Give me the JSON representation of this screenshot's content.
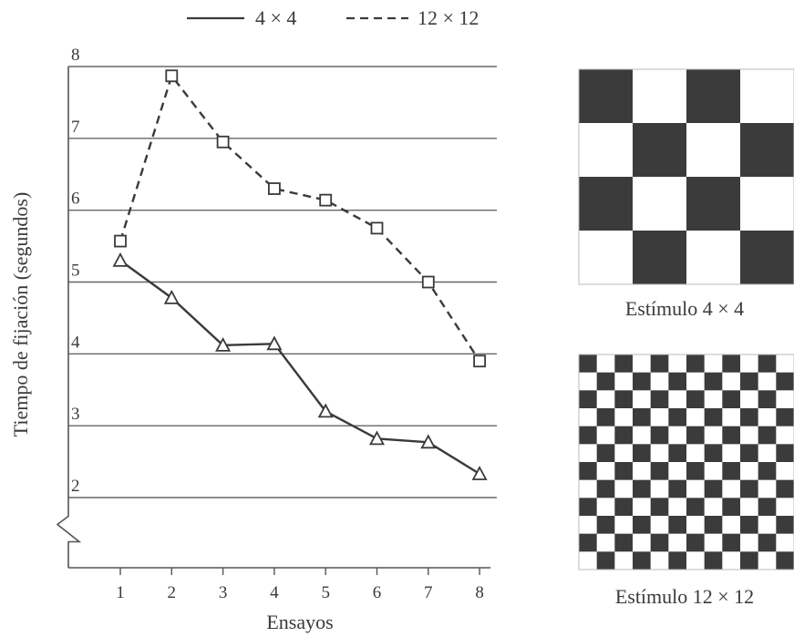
{
  "chart_data": {
    "type": "line",
    "xlabel": "Ensayos",
    "ylabel": "Tiempo de fijación (segundos)",
    "x": [
      1,
      2,
      3,
      4,
      5,
      6,
      7,
      8
    ],
    "x_ticks": [
      "1",
      "2",
      "3",
      "4",
      "5",
      "6",
      "7",
      "8"
    ],
    "y_ticks": [
      "2",
      "3",
      "4",
      "5",
      "6",
      "7",
      "8"
    ],
    "xlim": [
      0,
      8.2
    ],
    "ylim": [
      2,
      8
    ],
    "y_axis_break": true,
    "grid": "horizontal",
    "legend_position": "top",
    "series": [
      {
        "name": "4 × 4",
        "style": "solid",
        "marker": "triangle",
        "values": [
          5.3,
          4.78,
          4.12,
          4.14,
          3.2,
          2.82,
          2.77,
          2.33
        ]
      },
      {
        "name": "12 × 12",
        "style": "dashed",
        "marker": "square",
        "values": [
          5.57,
          7.87,
          6.95,
          6.3,
          6.14,
          5.75,
          5.0,
          3.9
        ]
      }
    ]
  },
  "stimuli": [
    {
      "caption": "Estímulo 4 × 4",
      "grid_size": 4
    },
    {
      "caption": "Estímulo 12 × 12",
      "grid_size": 12
    }
  ],
  "colors": {
    "ink": "#3a3a3a",
    "grid": "#666666",
    "dark_square": "#3b3b3b"
  }
}
